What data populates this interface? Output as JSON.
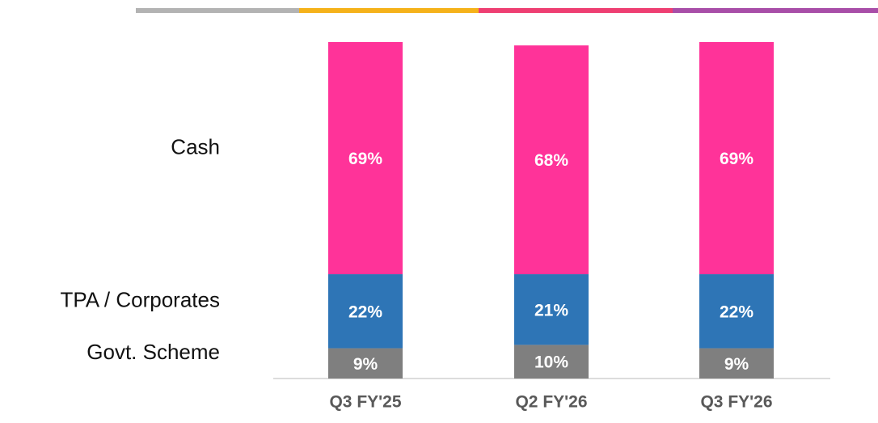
{
  "chart_data": {
    "type": "stacked_bar",
    "categories": [
      "Q3 FY'25",
      "Q2 FY'26",
      "Q3 FY'26"
    ],
    "series": [
      {
        "name": "Govt. Scheme",
        "color": "#7f7f7f",
        "values": [
          9,
          10,
          9
        ],
        "value_labels": [
          "9%",
          "10%",
          "9%"
        ]
      },
      {
        "name": "TPA / Corporates",
        "color": "#2e75b6",
        "values": [
          22,
          21,
          22
        ],
        "value_labels": [
          "22%",
          "21%",
          "22%"
        ]
      },
      {
        "name": "Cash",
        "color": "#ff3399",
        "values": [
          69,
          68,
          69
        ],
        "value_labels": [
          "69%",
          "68%",
          "69%"
        ]
      }
    ],
    "ylim": [
      0,
      100
    ]
  }
}
